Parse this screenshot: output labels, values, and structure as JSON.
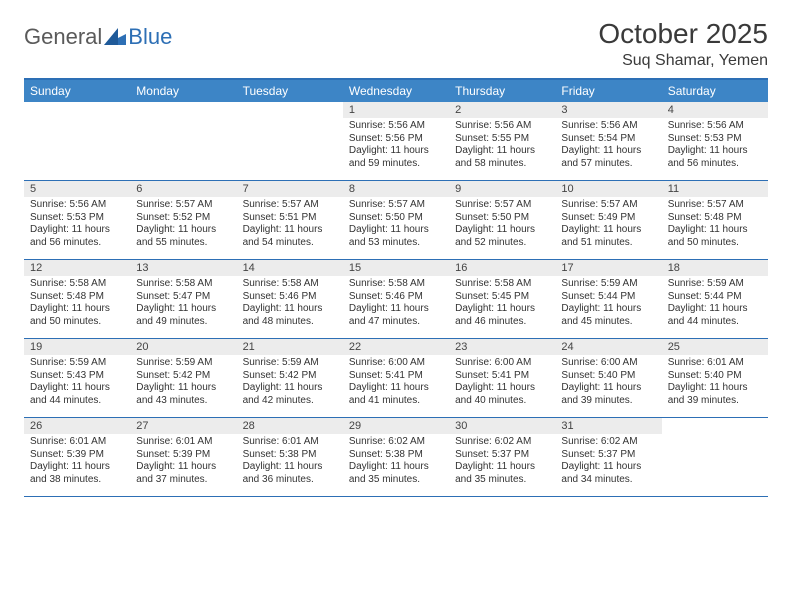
{
  "logo": {
    "text_general": "General",
    "text_blue": "Blue"
  },
  "header": {
    "month_title": "October 2025",
    "location": "Suq Shamar, Yemen"
  },
  "colors": {
    "header_bg": "#3d85c6",
    "header_border": "#2d6fb5",
    "daynum_bg": "#ececec",
    "text": "#333333",
    "logo_gray": "#5a5a5a",
    "logo_blue": "#2d6fb5"
  },
  "day_headers": [
    "Sunday",
    "Monday",
    "Tuesday",
    "Wednesday",
    "Thursday",
    "Friday",
    "Saturday"
  ],
  "weeks": [
    [
      {
        "empty": true
      },
      {
        "empty": true
      },
      {
        "empty": true
      },
      {
        "n": "1",
        "sunrise": "5:56 AM",
        "sunset": "5:56 PM",
        "day_h": "11",
        "day_m": "59"
      },
      {
        "n": "2",
        "sunrise": "5:56 AM",
        "sunset": "5:55 PM",
        "day_h": "11",
        "day_m": "58"
      },
      {
        "n": "3",
        "sunrise": "5:56 AM",
        "sunset": "5:54 PM",
        "day_h": "11",
        "day_m": "57"
      },
      {
        "n": "4",
        "sunrise": "5:56 AM",
        "sunset": "5:53 PM",
        "day_h": "11",
        "day_m": "56"
      }
    ],
    [
      {
        "n": "5",
        "sunrise": "5:56 AM",
        "sunset": "5:53 PM",
        "day_h": "11",
        "day_m": "56"
      },
      {
        "n": "6",
        "sunrise": "5:57 AM",
        "sunset": "5:52 PM",
        "day_h": "11",
        "day_m": "55"
      },
      {
        "n": "7",
        "sunrise": "5:57 AM",
        "sunset": "5:51 PM",
        "day_h": "11",
        "day_m": "54"
      },
      {
        "n": "8",
        "sunrise": "5:57 AM",
        "sunset": "5:50 PM",
        "day_h": "11",
        "day_m": "53"
      },
      {
        "n": "9",
        "sunrise": "5:57 AM",
        "sunset": "5:50 PM",
        "day_h": "11",
        "day_m": "52"
      },
      {
        "n": "10",
        "sunrise": "5:57 AM",
        "sunset": "5:49 PM",
        "day_h": "11",
        "day_m": "51"
      },
      {
        "n": "11",
        "sunrise": "5:57 AM",
        "sunset": "5:48 PM",
        "day_h": "11",
        "day_m": "50"
      }
    ],
    [
      {
        "n": "12",
        "sunrise": "5:58 AM",
        "sunset": "5:48 PM",
        "day_h": "11",
        "day_m": "50"
      },
      {
        "n": "13",
        "sunrise": "5:58 AM",
        "sunset": "5:47 PM",
        "day_h": "11",
        "day_m": "49"
      },
      {
        "n": "14",
        "sunrise": "5:58 AM",
        "sunset": "5:46 PM",
        "day_h": "11",
        "day_m": "48"
      },
      {
        "n": "15",
        "sunrise": "5:58 AM",
        "sunset": "5:46 PM",
        "day_h": "11",
        "day_m": "47"
      },
      {
        "n": "16",
        "sunrise": "5:58 AM",
        "sunset": "5:45 PM",
        "day_h": "11",
        "day_m": "46"
      },
      {
        "n": "17",
        "sunrise": "5:59 AM",
        "sunset": "5:44 PM",
        "day_h": "11",
        "day_m": "45"
      },
      {
        "n": "18",
        "sunrise": "5:59 AM",
        "sunset": "5:44 PM",
        "day_h": "11",
        "day_m": "44"
      }
    ],
    [
      {
        "n": "19",
        "sunrise": "5:59 AM",
        "sunset": "5:43 PM",
        "day_h": "11",
        "day_m": "44"
      },
      {
        "n": "20",
        "sunrise": "5:59 AM",
        "sunset": "5:42 PM",
        "day_h": "11",
        "day_m": "43"
      },
      {
        "n": "21",
        "sunrise": "5:59 AM",
        "sunset": "5:42 PM",
        "day_h": "11",
        "day_m": "42"
      },
      {
        "n": "22",
        "sunrise": "6:00 AM",
        "sunset": "5:41 PM",
        "day_h": "11",
        "day_m": "41"
      },
      {
        "n": "23",
        "sunrise": "6:00 AM",
        "sunset": "5:41 PM",
        "day_h": "11",
        "day_m": "40"
      },
      {
        "n": "24",
        "sunrise": "6:00 AM",
        "sunset": "5:40 PM",
        "day_h": "11",
        "day_m": "39"
      },
      {
        "n": "25",
        "sunrise": "6:01 AM",
        "sunset": "5:40 PM",
        "day_h": "11",
        "day_m": "39"
      }
    ],
    [
      {
        "n": "26",
        "sunrise": "6:01 AM",
        "sunset": "5:39 PM",
        "day_h": "11",
        "day_m": "38"
      },
      {
        "n": "27",
        "sunrise": "6:01 AM",
        "sunset": "5:39 PM",
        "day_h": "11",
        "day_m": "37"
      },
      {
        "n": "28",
        "sunrise": "6:01 AM",
        "sunset": "5:38 PM",
        "day_h": "11",
        "day_m": "36"
      },
      {
        "n": "29",
        "sunrise": "6:02 AM",
        "sunset": "5:38 PM",
        "day_h": "11",
        "day_m": "35"
      },
      {
        "n": "30",
        "sunrise": "6:02 AM",
        "sunset": "5:37 PM",
        "day_h": "11",
        "day_m": "35"
      },
      {
        "n": "31",
        "sunrise": "6:02 AM",
        "sunset": "5:37 PM",
        "day_h": "11",
        "day_m": "34"
      },
      {
        "empty": true
      }
    ]
  ],
  "labels": {
    "sunrise": "Sunrise:",
    "sunset": "Sunset:",
    "daylight_prefix": "Daylight:",
    "hours_word": "hours",
    "and_word": "and",
    "minutes_word": "minutes."
  }
}
